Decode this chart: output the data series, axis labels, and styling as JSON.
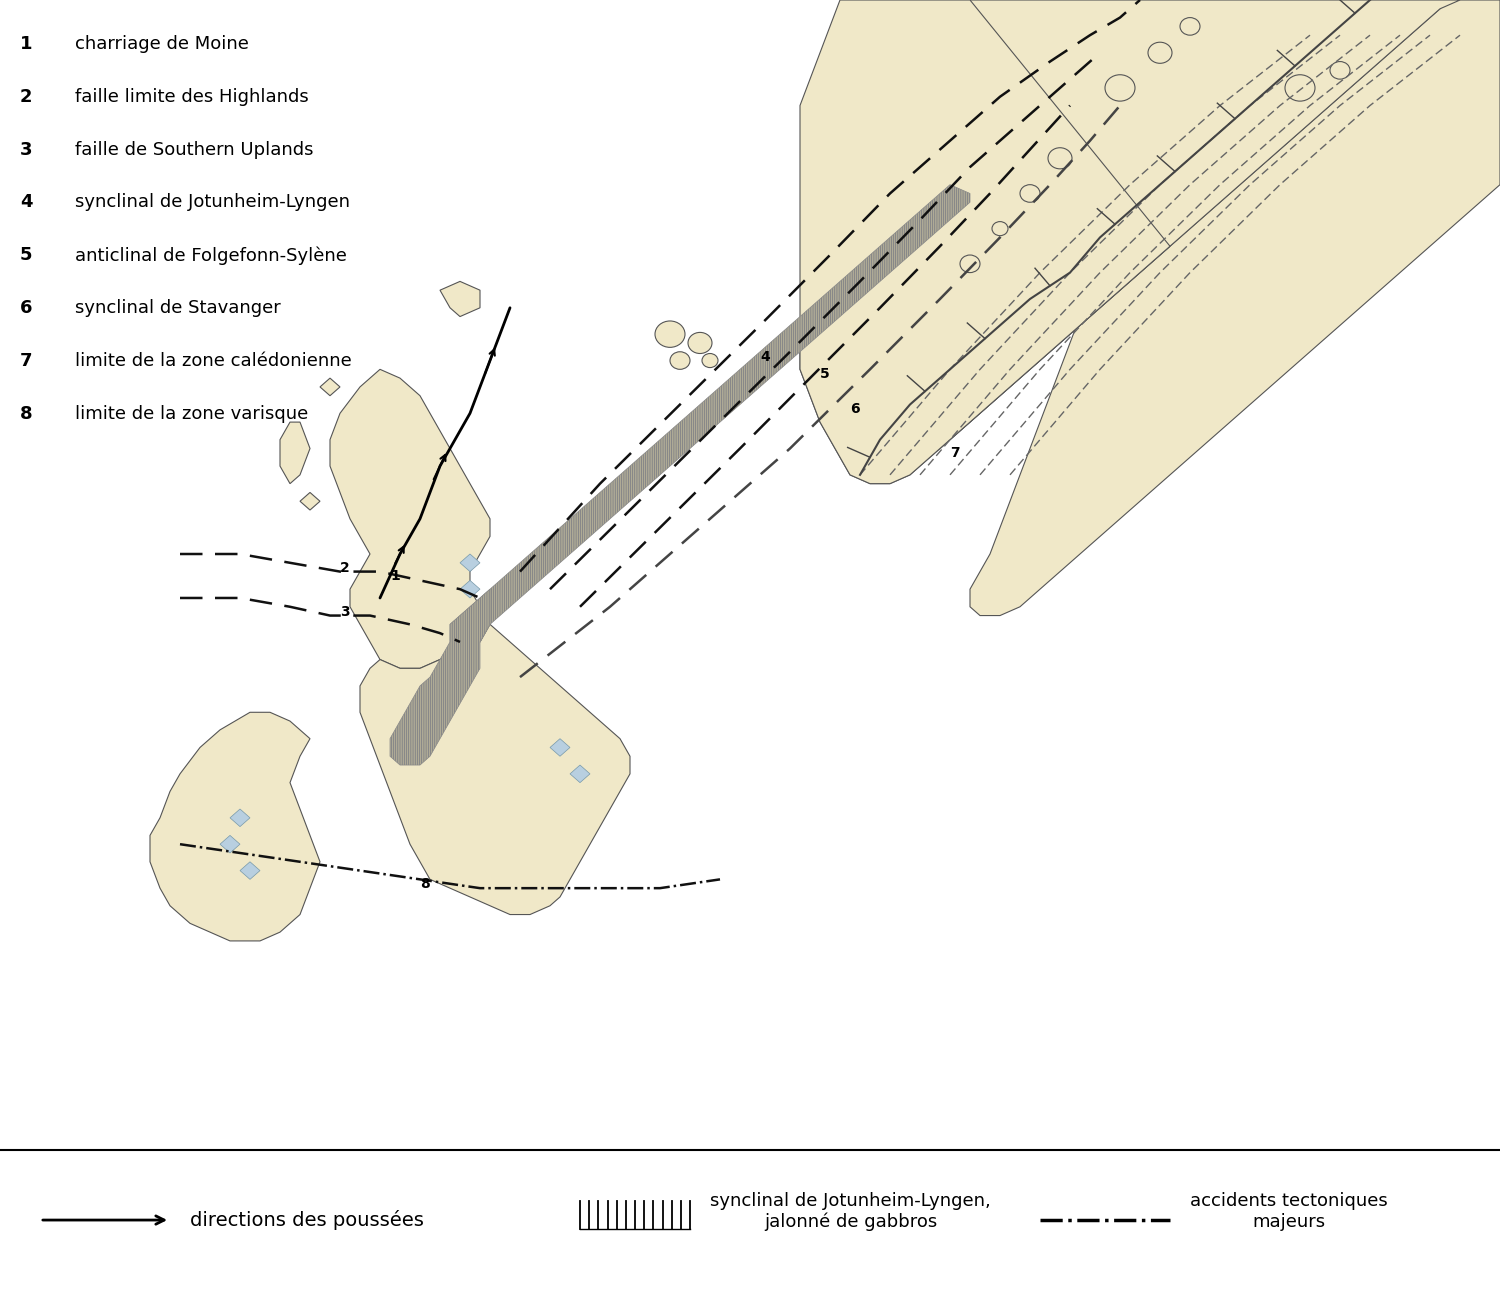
{
  "bg_map_color": "#cad8de",
  "bg_legend_color": "#ffffff",
  "land_color": "#f0e8c8",
  "land_edge_color": "#555555",
  "hatch_zone_color": "#ddd4a8",
  "legend_items": [
    {
      "num": "1",
      "text": "charriage de Moine"
    },
    {
      "num": "2",
      "text": "faille limite des Highlands"
    },
    {
      "num": "3",
      "text": "faille de Southern Uplands"
    },
    {
      "num": "4",
      "text": "synclinal de Jotunheim-Lyngen"
    },
    {
      "num": "5",
      "text": "anticlinal de Folgefonn-Sylène"
    },
    {
      "num": "6",
      "text": "synclinal de Stavanger"
    },
    {
      "num": "7",
      "text": "limite de la zone calédonienne"
    },
    {
      "num": "8",
      "text": "limite de la zone varisque"
    }
  ],
  "legend_arrow_label": "directions des poussées",
  "legend_hatch_label": "synclinal de Jotunheim-Lyngen,\njalonné de gabbros",
  "legend_dashdot_label": "accidents tectoniques\nmajeurs"
}
